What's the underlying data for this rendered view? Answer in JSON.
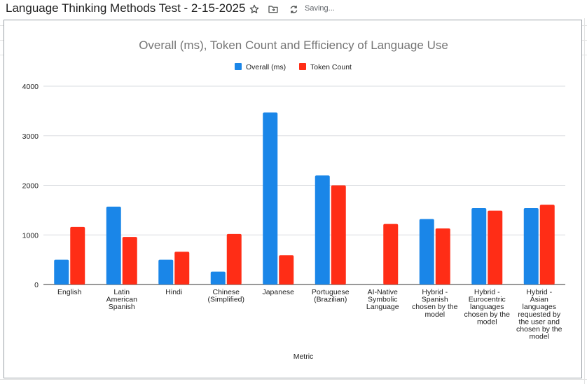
{
  "app": {
    "doc_title": "Language Thinking Methods Test - 2-15-2025",
    "saving_label": "Saving...",
    "icons": [
      "star-icon",
      "move-folder-icon",
      "sync-icon"
    ]
  },
  "colors": {
    "overall": "#1a86e8",
    "tokens": "#ff2d16",
    "grid": "#dadce0",
    "title": "#757575",
    "text": "#222222"
  },
  "chart_data": {
    "type": "bar",
    "title": "Overall (ms), Token Count and Efficiency of Language Use",
    "xlabel": "Metric",
    "ylabel": "",
    "ylim": [
      0,
      4000
    ],
    "yticks": [
      0,
      1000,
      2000,
      3000,
      4000
    ],
    "grid": true,
    "legend_position": "top",
    "categories": [
      [
        "English"
      ],
      [
        "Latin",
        "American",
        "Spanish"
      ],
      [
        "Hindi"
      ],
      [
        "Chinese",
        "(Simplified)"
      ],
      [
        "Japanese"
      ],
      [
        "Portuguese",
        "(Brazilian)"
      ],
      [
        "AI-Native",
        "Symbolic",
        "Language"
      ],
      [
        "Hybrid -",
        "Spanish",
        "chosen by the",
        "model"
      ],
      [
        "Hybrid -",
        "Eurocentric",
        "languages",
        "chosen by the",
        "model"
      ],
      [
        "Hybrid -",
        "Asian",
        "languages",
        "requested by",
        "the user and",
        "chosen by the",
        "model"
      ]
    ],
    "series": [
      {
        "name": "Overall (ms)",
        "values": [
          500,
          1570,
          500,
          260,
          3470,
          2200,
          null,
          1320,
          1540,
          1540
        ]
      },
      {
        "name": "Token Count",
        "values": [
          1160,
          960,
          660,
          1020,
          590,
          2000,
          1220,
          1130,
          1490,
          1610
        ]
      }
    ]
  }
}
